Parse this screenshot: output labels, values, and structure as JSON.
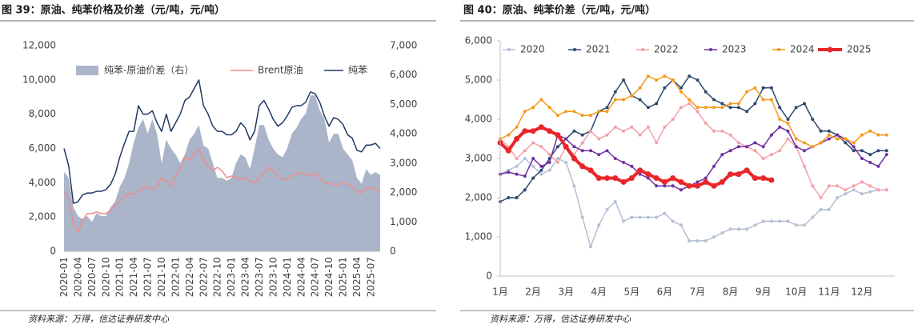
{
  "chart_data": [
    {
      "type": "line",
      "title": "图 39：原油、纯苯价格及价差（元/吨，元/吨）",
      "source": "资料来源：万得，信达证券研发中心",
      "categories": [
        "2020-01",
        null,
        null,
        "2020-04",
        null,
        null,
        "2020-07",
        null,
        null,
        "2020-10",
        null,
        null,
        "2021-01",
        null,
        null,
        "2021-04",
        null,
        null,
        "2021-07",
        null,
        null,
        "2021-10",
        null,
        null,
        "2022-01",
        null,
        null,
        "2022-04",
        null,
        null,
        "2022-07",
        null,
        null,
        "2022-10",
        null,
        null,
        "2023-01",
        null,
        null,
        "2023-04",
        null,
        null,
        "2023-07",
        null,
        null,
        "2023-10",
        null,
        null,
        "2024-01",
        null,
        null,
        "2024-04",
        null,
        null,
        "2024-07",
        null,
        null,
        "2024-10",
        null,
        null,
        "2025-01",
        null,
        null,
        "2025-04",
        null,
        null,
        "2025-07",
        null,
        null
      ],
      "ylim": [
        0,
        12000
      ],
      "yticks": [
        0,
        {
          "value": 2000,
          "label": "2,000"
        },
        {
          "value": 4000,
          "label": "4,000"
        },
        {
          "value": 6000,
          "label": "6,000"
        },
        {
          "value": 8000,
          "label": "8,000"
        },
        {
          "value": 10000,
          "label": "10,000"
        },
        {
          "value": 12000,
          "label": "12,000"
        }
      ],
      "y2lim": [
        0,
        7000
      ],
      "y2ticks": [
        0,
        {
          "value": 1000,
          "label": "1,000"
        },
        {
          "value": 2000,
          "label": "2,000"
        },
        {
          "value": 3000,
          "label": "3,000"
        },
        {
          "value": 4000,
          "label": "4,000"
        },
        {
          "value": 5000,
          "label": "5,000"
        },
        {
          "value": 6000,
          "label": "6,000"
        },
        {
          "value": 7000,
          "label": "7,000"
        }
      ],
      "legend": "top",
      "grid": false,
      "series": [
        {
          "name": "纯苯-原油价差（右）",
          "color": "#aab5c9",
          "axis": "y2",
          "area": true,
          "values": [
            2700,
            2500,
            1500,
            1200,
            1100,
            1200,
            1000,
            1300,
            1200,
            1200,
            1500,
            1700,
            2200,
            2500,
            3000,
            3700,
            4200,
            4500,
            4000,
            4500,
            4000,
            3000,
            3800,
            3500,
            3300,
            3000,
            3300,
            3800,
            4000,
            4300,
            3600,
            3500,
            3000,
            2500,
            2500,
            2400,
            2500,
            3000,
            3300,
            3200,
            2800,
            3500,
            4300,
            4300,
            3800,
            3500,
            3300,
            3200,
            3500,
            4000,
            4200,
            4500,
            4700,
            5300,
            5300,
            4800,
            4500,
            3700,
            4000,
            4000,
            3500,
            3300,
            3100,
            2500,
            2300,
            2800,
            2600,
            2700,
            2600
          ]
        },
        {
          "name": "Brent原油",
          "color": "#f08c8c",
          "values": [
            3500,
            3100,
            1600,
            1100,
            1800,
            2200,
            2200,
            2300,
            2200,
            2200,
            2400,
            2700,
            2900,
            3200,
            3400,
            3300,
            3500,
            3700,
            3800,
            3600,
            3800,
            4300,
            4100,
            3800,
            4400,
            4800,
            5500,
            5300,
            5700,
            6000,
            5300,
            5000,
            4700,
            4900,
            4700,
            4300,
            4400,
            4300,
            4200,
            4300,
            4100,
            4000,
            4300,
            4600,
            4900,
            4700,
            4400,
            4200,
            4200,
            4400,
            4500,
            4600,
            4500,
            4400,
            4600,
            4300,
            4000,
            4000,
            3900,
            3900,
            4000,
            3900,
            3800,
            3500,
            3400,
            3700,
            3700,
            3600,
            3500
          ]
        },
        {
          "name": "纯苯",
          "color": "#203864",
          "values": [
            6000,
            5000,
            2800,
            2900,
            3300,
            3400,
            3400,
            3500,
            3500,
            3600,
            3900,
            4500,
            5500,
            6300,
            7000,
            7000,
            8500,
            8000,
            8000,
            8200,
            7500,
            7000,
            8000,
            7000,
            7500,
            8000,
            8800,
            9000,
            9500,
            10000,
            8500,
            8000,
            7300,
            7000,
            7000,
            6800,
            6800,
            7000,
            7500,
            7200,
            6500,
            7000,
            8500,
            8800,
            8300,
            7700,
            7300,
            7500,
            7900,
            8400,
            8500,
            8500,
            8700,
            9300,
            9200,
            8700,
            7900,
            7300,
            7800,
            7700,
            7400,
            6800,
            6600,
            5900,
            5800,
            6200,
            6200,
            6300,
            6000
          ]
        }
      ]
    },
    {
      "type": "line",
      "title": "图 40：原油、纯苯价差（元/吨，元/吨）",
      "source": "资料来源：万得，信达证券研发中心",
      "categories": [
        "1月",
        null,
        null,
        null,
        "2月",
        null,
        null,
        null,
        "3月",
        null,
        null,
        null,
        "4月",
        null,
        null,
        null,
        "5月",
        null,
        null,
        null,
        "6月",
        null,
        null,
        null,
        "7月",
        null,
        null,
        null,
        "8月",
        null,
        null,
        null,
        "9月",
        null,
        null,
        null,
        "10月",
        null,
        null,
        null,
        "11月",
        null,
        null,
        null,
        "12月",
        null,
        null,
        null
      ],
      "ylim": [
        0,
        6000
      ],
      "yticks": [
        0,
        {
          "value": 1000,
          "label": "1,000"
        },
        {
          "value": 2000,
          "label": "2,000"
        },
        {
          "value": 3000,
          "label": "3,000"
        },
        {
          "value": 4000,
          "label": "4,000"
        },
        {
          "value": 5000,
          "label": "5,000"
        },
        {
          "value": 6000,
          "label": "6,000"
        }
      ],
      "legend": "top",
      "grid": false,
      "markers": true,
      "series": [
        {
          "name": "2020",
          "color": "#b4c0d4",
          "values": [
            2600,
            2700,
            2800,
            3000,
            2800,
            2600,
            2700,
            3000,
            2900,
            2300,
            1500,
            750,
            1300,
            1700,
            1900,
            1400,
            1500,
            1500,
            1500,
            1500,
            1600,
            1400,
            1300,
            900,
            900,
            900,
            1000,
            1100,
            1200,
            1200,
            1200,
            1300,
            1400,
            1400,
            1400,
            1400,
            1300,
            1300,
            1500,
            1700,
            1700,
            2000,
            2100,
            2200,
            2100,
            2150,
            2200,
            2200
          ]
        },
        {
          "name": "2021",
          "color": "#2e4a6e",
          "values": [
            1900,
            2000,
            2000,
            2200,
            2500,
            2700,
            3000,
            3300,
            3500,
            3700,
            3600,
            3700,
            4200,
            4300,
            4700,
            5000,
            4600,
            4500,
            4300,
            4400,
            4800,
            5000,
            4800,
            5100,
            5000,
            4700,
            4500,
            4400,
            4300,
            4300,
            4200,
            4400,
            4800,
            4800,
            4300,
            4000,
            4300,
            4400,
            4000,
            3700,
            3700,
            3600,
            3400,
            3200,
            3200,
            3100,
            3200,
            3200
          ]
        },
        {
          "name": "2022",
          "color": "#f4a0a8",
          "values": [
            3500,
            3300,
            3000,
            3200,
            3400,
            3300,
            3100,
            2900,
            3300,
            3100,
            3400,
            3700,
            3500,
            3600,
            3800,
            3700,
            3800,
            3600,
            3800,
            3400,
            3800,
            4000,
            4300,
            4400,
            4200,
            3900,
            3700,
            3700,
            3600,
            3400,
            3300,
            3200,
            3000,
            3100,
            3200,
            3500,
            3300,
            2800,
            2300,
            2000,
            2300,
            2300,
            2200,
            2300,
            2400,
            2300,
            2200,
            2200
          ]
        },
        {
          "name": "2023",
          "color": "#7030a0",
          "values": [
            2600,
            2650,
            2600,
            2550,
            3000,
            2800,
            2900,
            3600,
            3500,
            3300,
            3200,
            3200,
            3100,
            3200,
            3000,
            2900,
            2800,
            2600,
            2500,
            2300,
            2300,
            2300,
            2200,
            2300,
            2400,
            2500,
            2800,
            3100,
            3200,
            3300,
            3300,
            3400,
            3300,
            3600,
            3800,
            3700,
            3300,
            3200,
            3300,
            3400,
            3500,
            3600,
            3500,
            3300,
            3000,
            2900,
            2800,
            3100
          ]
        },
        {
          "name": "2024",
          "color": "#f59a1a",
          "values": [
            3500,
            3600,
            3800,
            4200,
            4300,
            4500,
            4300,
            4100,
            4200,
            4200,
            4100,
            4100,
            4200,
            4200,
            4500,
            4500,
            4600,
            4800,
            5100,
            5000,
            5100,
            5000,
            4700,
            4500,
            4300,
            4300,
            4300,
            4300,
            4400,
            4400,
            4700,
            4800,
            4500,
            4500,
            4000,
            3900,
            3500,
            3400,
            3300,
            3400,
            3600,
            3500,
            3500,
            3400,
            3600,
            3700,
            3600,
            3600
          ]
        },
        {
          "name": "2025",
          "color": "#e8262a",
          "linewidth": 4,
          "values": [
            3400,
            3200,
            3500,
            3700,
            3700,
            3800,
            3700,
            3600,
            3300,
            3000,
            2800,
            2700,
            2500,
            2500,
            2500,
            2400,
            2500,
            2700,
            2600,
            2500,
            2400,
            2500,
            2400,
            2300,
            2300,
            2400,
            2300,
            2400,
            2600,
            2600,
            2700,
            2500,
            2500,
            2450,
            null,
            null,
            null,
            null,
            null,
            null,
            null,
            null,
            null,
            null,
            null,
            null,
            null,
            null
          ]
        }
      ]
    }
  ]
}
